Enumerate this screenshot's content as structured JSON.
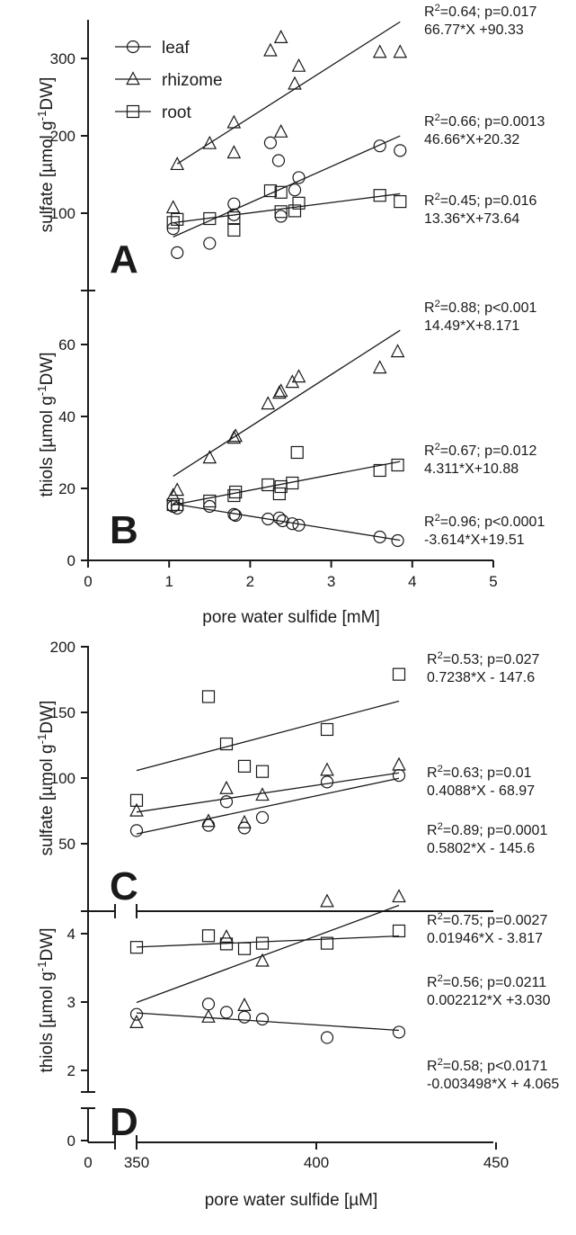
{
  "chart_data": [
    {
      "panel": "A",
      "type": "scatter",
      "ylabel": "sulfate [µmol g⁻¹DW]",
      "ylim": [
        0,
        350
      ],
      "yticks": [
        100,
        200,
        300
      ],
      "xlim": [
        0,
        5
      ],
      "legend": {
        "placement": "top-left",
        "entries": [
          {
            "label": "leaf",
            "marker": "circle"
          },
          {
            "label": "rhizome",
            "marker": "triangle"
          },
          {
            "label": "root",
            "marker": "square"
          }
        ]
      },
      "series": [
        {
          "name": "rhizome",
          "marker": "triangle",
          "x": [
            1.05,
            1.1,
            1.5,
            1.8,
            1.8,
            2.25,
            2.38,
            2.38,
            2.55,
            2.6,
            3.6,
            3.85
          ],
          "y": [
            107,
            163,
            190,
            178,
            217,
            310,
            327,
            205,
            267,
            290,
            308,
            308
          ],
          "fit": {
            "slope": 66.77,
            "intercept": 90.33,
            "x_range": [
              1.1,
              3.85
            ]
          },
          "stat": {
            "r2": "R²=0.64; p=0.017",
            "equation": "66.77*X +90.33"
          }
        },
        {
          "name": "leaf",
          "marker": "circle",
          "x": [
            1.05,
            1.1,
            1.5,
            1.8,
            1.8,
            2.25,
            2.35,
            2.38,
            2.55,
            2.6,
            3.6,
            3.85
          ],
          "y": [
            80,
            49,
            61,
            112,
            98,
            191,
            168,
            96,
            130,
            146,
            187,
            181
          ],
          "fit": {
            "slope": 46.66,
            "intercept": 20.32,
            "x_range": [
              1.05,
              3.85
            ]
          },
          "stat": {
            "r2": "R²=0.66; p=0.0013",
            "equation": "46.66*X+20.32"
          }
        },
        {
          "name": "root",
          "marker": "square",
          "x": [
            1.05,
            1.1,
            1.5,
            1.8,
            1.8,
            2.25,
            2.38,
            2.38,
            2.55,
            2.6,
            3.6,
            3.85
          ],
          "y": [
            88,
            92,
            93,
            78,
            94,
            129,
            127,
            102,
            103,
            113,
            123,
            115
          ],
          "fit": {
            "slope": 13.36,
            "intercept": 73.64,
            "x_range": [
              1.05,
              3.85
            ]
          },
          "stat": {
            "r2": "R²=0.45; p=0.016",
            "equation": "13.36*X+73.64"
          }
        }
      ]
    },
    {
      "panel": "B",
      "type": "scatter",
      "ylabel": "thiols [µmol g⁻¹DW]",
      "ylim": [
        0,
        75
      ],
      "yticks": [
        0,
        20,
        40,
        60
      ],
      "xlabel": "pore water sulfide [mM]",
      "xlim": [
        0,
        5
      ],
      "xticks": [
        0,
        1,
        2,
        3,
        4,
        5
      ],
      "series": [
        {
          "name": "rhizome",
          "marker": "triangle",
          "x": [
            1.05,
            1.1,
            1.5,
            1.8,
            1.82,
            2.22,
            2.36,
            2.38,
            2.52,
            2.6,
            3.6,
            3.82
          ],
          "y": [
            18,
            19.5,
            28.5,
            34,
            34.5,
            43.5,
            46.5,
            47,
            49.5,
            51,
            53.5,
            58
          ],
          "fit": {
            "slope": 14.49,
            "intercept": 8.171,
            "x_range": [
              1.05,
              3.85
            ]
          },
          "stat": {
            "r2": "R²=0.88; p<0.001",
            "equation": "14.49*X+8.171"
          }
        },
        {
          "name": "root",
          "marker": "square",
          "x": [
            1.05,
            1.1,
            1.5,
            1.8,
            1.82,
            2.22,
            2.36,
            2.38,
            2.52,
            2.58,
            3.6,
            3.82
          ],
          "y": [
            15.5,
            15.5,
            16.5,
            18,
            19,
            21,
            18.5,
            20.5,
            21.5,
            30,
            25,
            26.5
          ],
          "fit": {
            "slope": 4.311,
            "intercept": 10.88,
            "x_range": [
              1.05,
              3.85
            ]
          },
          "stat": {
            "r2": "R²=0.67; p=0.012",
            "equation": "4.311*X+10.88"
          }
        },
        {
          "name": "leaf",
          "marker": "circle",
          "x": [
            1.05,
            1.1,
            1.5,
            1.8,
            1.82,
            2.22,
            2.36,
            2.4,
            2.52,
            2.6,
            3.6,
            3.82
          ],
          "y": [
            15,
            14.5,
            15,
            12.8,
            12.5,
            11.5,
            11.8,
            11,
            10.2,
            9.8,
            6.5,
            5.5
          ],
          "fit": {
            "slope": -3.614,
            "intercept": 19.51,
            "x_range": [
              1.05,
              3.85
            ]
          },
          "stat": {
            "r2": "R²=0.96; p<0.0001",
            "equation": "-3.614*X+19.51"
          }
        }
      ]
    },
    {
      "panel": "C",
      "type": "scatter",
      "ylabel": "sulfate [µmol g⁻¹DW]",
      "ylim": [
        0,
        200
      ],
      "yticks": [
        50,
        100,
        150,
        200
      ],
      "xlim": [
        350,
        450
      ],
      "series": [
        {
          "name": "root",
          "marker": "square",
          "x": [
            350,
            370,
            375,
            380,
            385,
            403,
            423
          ],
          "y": [
            83,
            162,
            126,
            109,
            105,
            137,
            179
          ],
          "fit": {
            "slope": 0.7238,
            "intercept": -147.6,
            "x_range": [
              350,
              423
            ]
          },
          "stat": {
            "r2": "R²=0.53; p=0.027",
            "equation": "0.7238*X - 147.6"
          }
        },
        {
          "name": "rhizome",
          "marker": "triangle",
          "x": [
            350,
            370,
            375,
            380,
            385,
            403,
            423
          ],
          "y": [
            75,
            67,
            92,
            66,
            87,
            106,
            110
          ],
          "fit": {
            "slope": 0.4088,
            "intercept": -68.97,
            "x_range": [
              350,
              423
            ]
          },
          "stat": {
            "r2": "R²=0.63; p=0.01",
            "equation": "0.4088*X - 68.97"
          }
        },
        {
          "name": "leaf",
          "marker": "circle",
          "x": [
            350,
            370,
            375,
            380,
            385,
            403,
            423
          ],
          "y": [
            60,
            64,
            82,
            62,
            70,
            97,
            102
          ],
          "fit": {
            "slope": 0.5802,
            "intercept": -145.6,
            "x_range": [
              350,
              423
            ]
          },
          "stat": {
            "r2": "R²=0.89; p=0.0001",
            "equation": "0.5802*X - 145.6"
          }
        }
      ]
    },
    {
      "panel": "D",
      "type": "scatter",
      "ylabel": "thiols [µmol g⁻¹DW]",
      "ylim": [
        2,
        4.8
      ],
      "yticks": [
        2,
        3,
        4
      ],
      "ytick_broken_low": [
        0
      ],
      "xlabel": "pore water sulfide [µM]",
      "xlim": [
        350,
        450
      ],
      "xticks": [
        350,
        400,
        450
      ],
      "xtick_broken_low": [
        0
      ],
      "series": [
        {
          "name": "rhizome",
          "marker": "triangle",
          "x": [
            350,
            370,
            375,
            380,
            385,
            403,
            423
          ],
          "y": [
            2.7,
            2.78,
            3.95,
            2.95,
            3.6,
            4.47,
            4.54
          ],
          "fit": {
            "slope": 0.01946,
            "intercept": -3.817,
            "x_range": [
              350,
              423
            ]
          },
          "stat": {
            "r2": "R²=0.75; p=0.0027",
            "equation": "0.01946*X - 3.817"
          }
        },
        {
          "name": "root",
          "marker": "square",
          "x": [
            350,
            370,
            375,
            380,
            385,
            403,
            423
          ],
          "y": [
            3.8,
            3.97,
            3.85,
            3.78,
            3.86,
            3.86,
            4.04
          ],
          "fit": {
            "slope": 0.002212,
            "intercept": 3.03,
            "x_range": [
              350,
              423
            ]
          },
          "stat": {
            "r2": "R²=0.56; p=0.0211",
            "equation": "0.002212*X +3.030"
          }
        },
        {
          "name": "leaf",
          "marker": "circle",
          "x": [
            350,
            370,
            375,
            380,
            385,
            403,
            423
          ],
          "y": [
            2.82,
            2.97,
            2.85,
            2.78,
            2.75,
            2.48,
            2.56
          ],
          "fit": {
            "slope": -0.003498,
            "intercept": 4.065,
            "x_range": [
              350,
              423
            ]
          },
          "stat": {
            "r2": "R²=0.58; p<0.0171",
            "equation": "-0.003498*X + 4.065"
          }
        }
      ]
    }
  ]
}
